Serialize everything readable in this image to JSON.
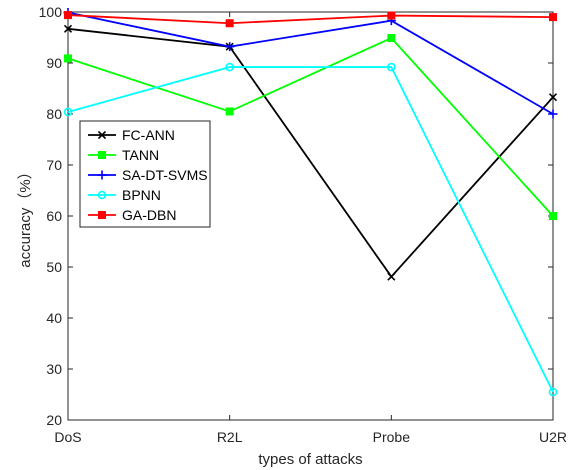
{
  "chart_data": {
    "type": "line",
    "title": "",
    "xlabel": "types of attacks",
    "ylabel": "accuracy（%）",
    "categories": [
      "DoS",
      "R2L",
      "Probe",
      "U2R"
    ],
    "ylim": [
      20,
      100
    ],
    "yticks": [
      20,
      30,
      40,
      50,
      60,
      70,
      80,
      90,
      100
    ],
    "grid": false,
    "legend_position": "left",
    "series": [
      {
        "name": "FC-ANN",
        "values": [
          96.7,
          93.2,
          48.1,
          83.3
        ],
        "color": "#000000",
        "marker": "x"
      },
      {
        "name": "TANN",
        "values": [
          90.9,
          80.5,
          94.9,
          60.0
        ],
        "color": "#00ff00",
        "marker": "square"
      },
      {
        "name": "SA-DT-SVMS",
        "values": [
          99.9,
          93.2,
          98.3,
          80.0
        ],
        "color": "#0000ff",
        "marker": "plus"
      },
      {
        "name": "BPNN",
        "values": [
          80.4,
          89.2,
          89.2,
          25.5
        ],
        "color": "#00ffff",
        "marker": "circle"
      },
      {
        "name": "GA-DBN",
        "values": [
          99.4,
          97.8,
          99.3,
          99.0
        ],
        "color": "#ff0000",
        "marker": "square"
      }
    ]
  }
}
